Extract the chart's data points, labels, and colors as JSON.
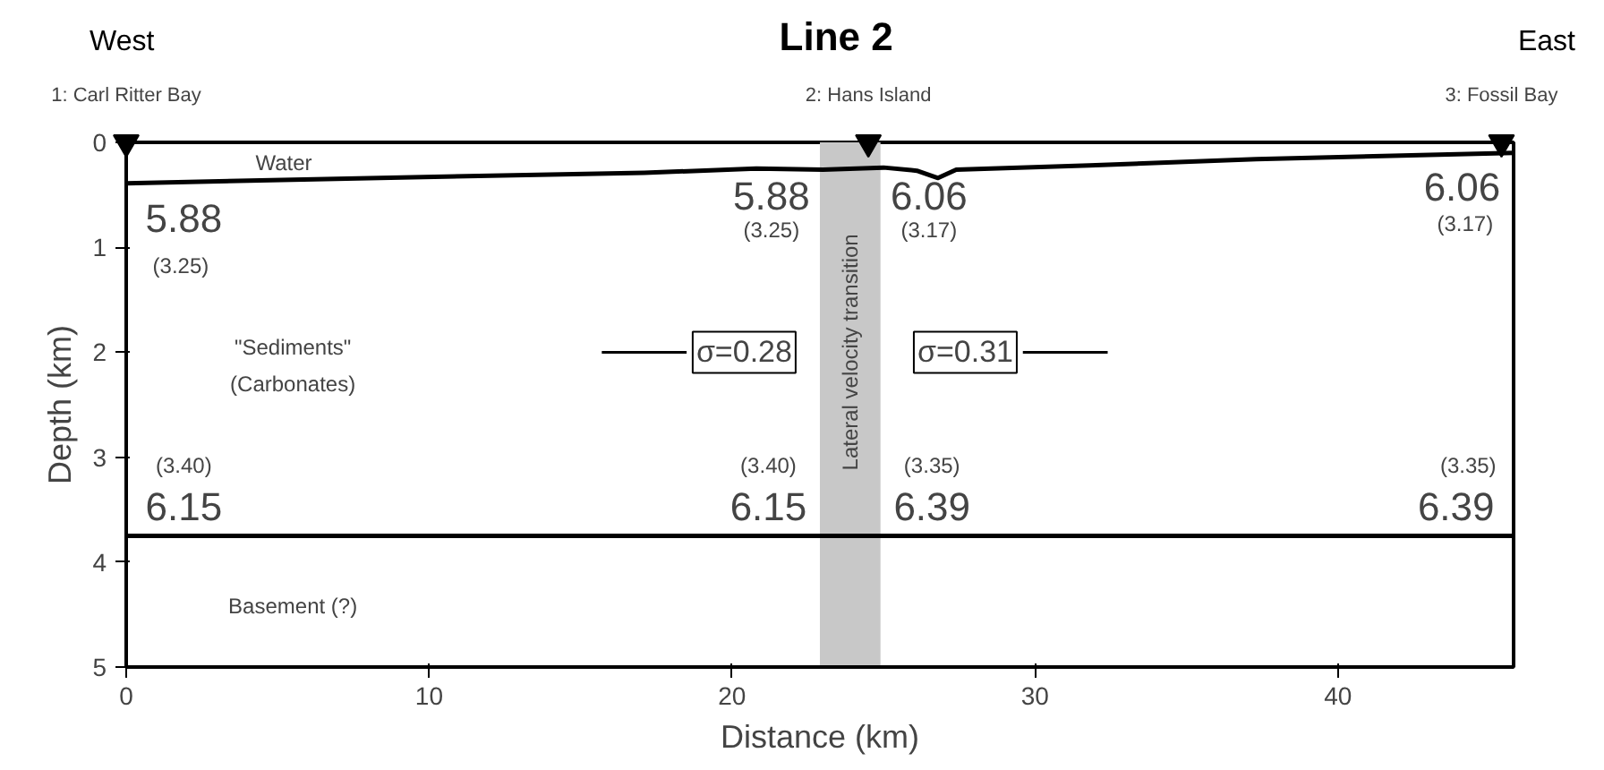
{
  "chart_data": {
    "type": "line",
    "title": "Line 2",
    "xlabel": "Distance (km)",
    "ylabel": "Depth (km)",
    "xlim": [
      0,
      45.8
    ],
    "ylim": [
      5,
      0
    ],
    "xticks": [
      0,
      10,
      20,
      30,
      40
    ],
    "yticks": [
      0,
      1,
      2,
      3,
      4,
      5
    ],
    "grid": false,
    "series": [
      {
        "color": "#000000",
        "x": [
          0,
          9.8,
          17.1,
          20.8,
          23.0,
          25.0,
          26.1,
          26.8,
          27.4,
          31.8,
          37.3,
          45.8
        ],
        "values": [
          0.39,
          0.33,
          0.29,
          0.25,
          0.26,
          0.24,
          0.27,
          0.34,
          0.26,
          0.22,
          0.16,
          0.1
        ]
      },
      {
        "color": "#000000",
        "x": [
          0,
          45.8
        ],
        "values": [
          3.75,
          3.75
        ]
      },
      {
        "type": "scatter",
        "marker": "triangle",
        "color": "#000000",
        "x": [
          0,
          24.5,
          45.4
        ],
        "values": [
          0,
          0,
          0
        ]
      }
    ],
    "bands": [
      {
        "axis": "x",
        "from": 22.9,
        "to": 24.9,
        "label": "Lateral velocity transition",
        "color": "#c8c8c8"
      }
    ],
    "annotations": [
      "West",
      "East",
      {
        "text": "1: Carl Ritter Bay",
        "x": 0,
        "y": 0
      },
      {
        "text": "2: Hans Island",
        "x": 24.5,
        "y": 0
      },
      {
        "text": "3: Fossil Bay",
        "x": 45.4,
        "y": 0
      },
      "Water",
      "5.88",
      "(3.25)",
      "5.88",
      "(3.25)",
      "6.06",
      "(3.17)",
      "6.06",
      "(3.17)",
      "\"Sediments\"",
      "(Carbonates)",
      "σ=0.28",
      "σ=0.31",
      "(3.40)",
      "6.15",
      "(3.40)",
      "6.15",
      "(3.35)",
      "6.39",
      "(3.35)",
      "6.39",
      "Basement (?)"
    ]
  }
}
